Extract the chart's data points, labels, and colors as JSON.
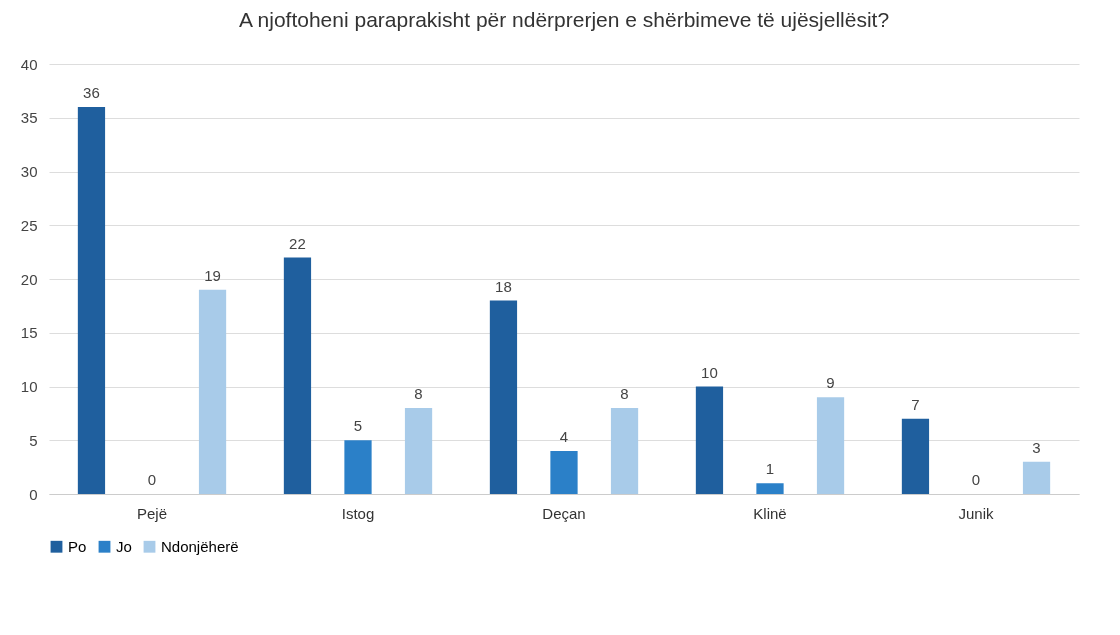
{
  "chart_data": {
    "type": "bar",
    "title": "A njoftoheni paraprakisht për ndërprerjen e shërbimeve të ujësjellësit?",
    "categories": [
      "Pejë",
      "Istog",
      "Deçan",
      "Klinë",
      "Junik"
    ],
    "series": [
      {
        "name": "Po",
        "color": "#1f5f9e",
        "values": [
          36,
          22,
          18,
          10,
          7
        ]
      },
      {
        "name": "Jo",
        "color": "#2b80c8",
        "values": [
          0,
          5,
          4,
          1,
          0
        ]
      },
      {
        "name": "Ndonjëherë",
        "color": "#a8cbe9",
        "values": [
          19,
          8,
          8,
          9,
          3
        ]
      }
    ],
    "ylim": [
      0,
      40
    ],
    "yticks": [
      0,
      5,
      10,
      15,
      20,
      25,
      30,
      35,
      40
    ],
    "grid": "y",
    "legend": "bottom",
    "data_labels": true
  }
}
